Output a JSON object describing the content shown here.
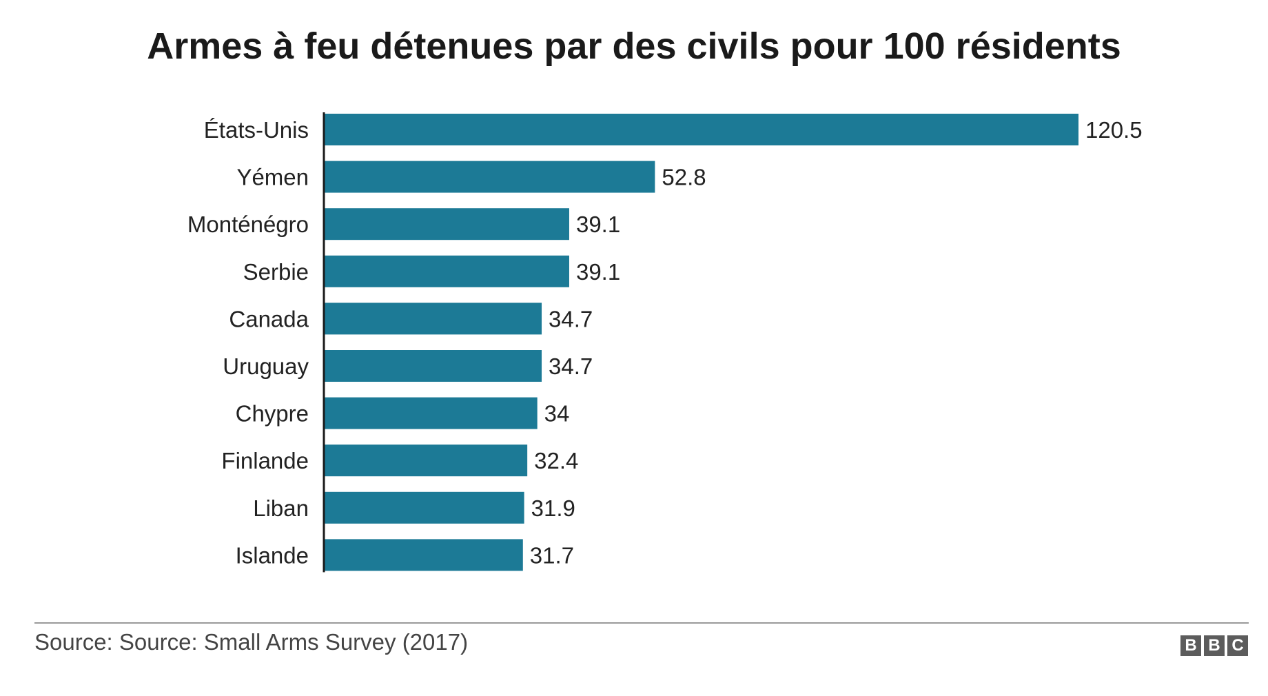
{
  "chart_data": {
    "type": "bar",
    "orientation": "horizontal",
    "title": "Armes à feu détenues par des civils pour 100 résidents",
    "categories": [
      "États-Unis",
      "Yémen",
      "Monténégro",
      "Serbie",
      "Canada",
      "Uruguay",
      "Chypre",
      "Finlande",
      "Liban",
      "Islande"
    ],
    "values": [
      120.5,
      52.8,
      39.1,
      39.1,
      34.7,
      34.7,
      34,
      32.4,
      31.9,
      31.7
    ],
    "value_labels": [
      "120.5",
      "52.8",
      "39.1",
      "39.1",
      "34.7",
      "34.7",
      "34",
      "32.4",
      "31.9",
      "31.7"
    ],
    "xlabel": "",
    "ylabel": "",
    "xlim": [
      0,
      120.5
    ],
    "grid": false,
    "legend": "none",
    "bar_color": "#1c7a96"
  },
  "footer": {
    "source": "Source: Source: Small Arms Survey (2017)",
    "logo_letters": [
      "B",
      "B",
      "C"
    ]
  },
  "colors": {
    "axis": "#1a1a1a",
    "text": "#222222",
    "rule": "#9a9a9a",
    "logo": "#5c5c5c"
  }
}
